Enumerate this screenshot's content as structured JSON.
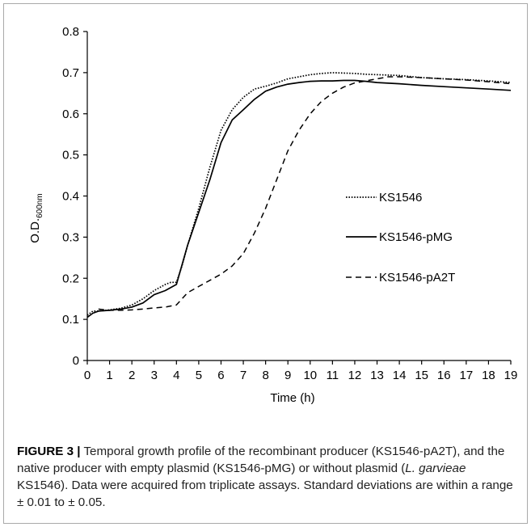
{
  "chart_data": {
    "type": "line",
    "title": "",
    "xlabel": "Time (h)",
    "ylabel": "O.D.",
    "ylabel_sub": "600nm",
    "xlim": [
      0,
      19
    ],
    "ylim": [
      0,
      0.8
    ],
    "x_ticks": [
      0,
      1,
      2,
      3,
      4,
      5,
      6,
      7,
      8,
      9,
      10,
      11,
      12,
      13,
      14,
      15,
      16,
      17,
      18,
      19
    ],
    "y_ticks": [
      "0",
      "0.1",
      "0.2",
      "0.3",
      "0.4",
      "0.5",
      "0.6",
      "0.7",
      "0.8"
    ],
    "grid": false,
    "legend_position": "right-middle",
    "series": [
      {
        "name": "KS1546",
        "line_style": "dotted",
        "x": [
          0,
          0.25,
          0.5,
          1,
          1.5,
          2,
          2.5,
          3,
          3.5,
          3.75,
          4,
          4.25,
          4.5,
          5,
          5.5,
          6,
          6.5,
          7,
          7.5,
          8,
          8.5,
          9,
          9.5,
          10,
          10.5,
          11,
          11.5,
          12,
          12.5,
          13,
          14,
          15,
          16,
          17,
          18,
          19
        ],
        "y": [
          0.11,
          0.12,
          0.12,
          0.123,
          0.127,
          0.135,
          0.15,
          0.17,
          0.185,
          0.19,
          0.19,
          0.23,
          0.28,
          0.37,
          0.47,
          0.56,
          0.61,
          0.64,
          0.66,
          0.667,
          0.675,
          0.685,
          0.69,
          0.695,
          0.698,
          0.7,
          0.699,
          0.698,
          0.696,
          0.695,
          0.693,
          0.688,
          0.685,
          0.683,
          0.68,
          0.676
        ]
      },
      {
        "name": "KS1546-pMG",
        "line_style": "solid",
        "x": [
          0,
          0.25,
          0.5,
          1,
          1.5,
          2,
          2.5,
          3,
          3.5,
          4,
          4.5,
          5,
          5.5,
          6,
          6.5,
          7,
          7.5,
          8,
          8.5,
          9,
          9.5,
          10,
          10.5,
          11,
          11.5,
          12,
          12.5,
          13,
          14,
          15,
          16,
          17,
          18,
          19
        ],
        "y": [
          0.105,
          0.115,
          0.12,
          0.122,
          0.125,
          0.13,
          0.14,
          0.16,
          0.17,
          0.185,
          0.28,
          0.36,
          0.44,
          0.53,
          0.585,
          0.61,
          0.635,
          0.655,
          0.665,
          0.672,
          0.676,
          0.679,
          0.68,
          0.68,
          0.681,
          0.681,
          0.679,
          0.676,
          0.673,
          0.669,
          0.666,
          0.663,
          0.66,
          0.657
        ]
      },
      {
        "name": "KS1546-pA2T",
        "line_style": "dashed",
        "x": [
          0.5,
          1,
          1.5,
          2,
          2.5,
          3,
          3.5,
          4,
          4.5,
          5,
          5.5,
          6,
          6.5,
          7,
          7.5,
          8,
          8.5,
          9,
          9.5,
          10,
          10.5,
          11,
          11.5,
          12,
          12.5,
          13,
          13.5,
          14,
          15,
          16,
          17,
          18,
          19
        ],
        "y": [
          0.125,
          0.122,
          0.122,
          0.123,
          0.125,
          0.128,
          0.13,
          0.135,
          0.165,
          0.18,
          0.195,
          0.21,
          0.23,
          0.26,
          0.31,
          0.37,
          0.44,
          0.51,
          0.56,
          0.6,
          0.63,
          0.65,
          0.665,
          0.675,
          0.68,
          0.685,
          0.69,
          0.69,
          0.688,
          0.685,
          0.682,
          0.678,
          0.673
        ]
      }
    ]
  },
  "caption": {
    "label": "FIGURE 3 |",
    "text_1": " Temporal growth profile of the recombinant producer (KS1546-pA2T), and the native producer with empty plasmid (KS1546-pMG) or without plasmid (",
    "text_italic": "L. garvieae",
    "text_2": " KS1546). Data were acquired from triplicate assays. Standard deviations are within a range ± 0.01 to ± 0.05."
  }
}
